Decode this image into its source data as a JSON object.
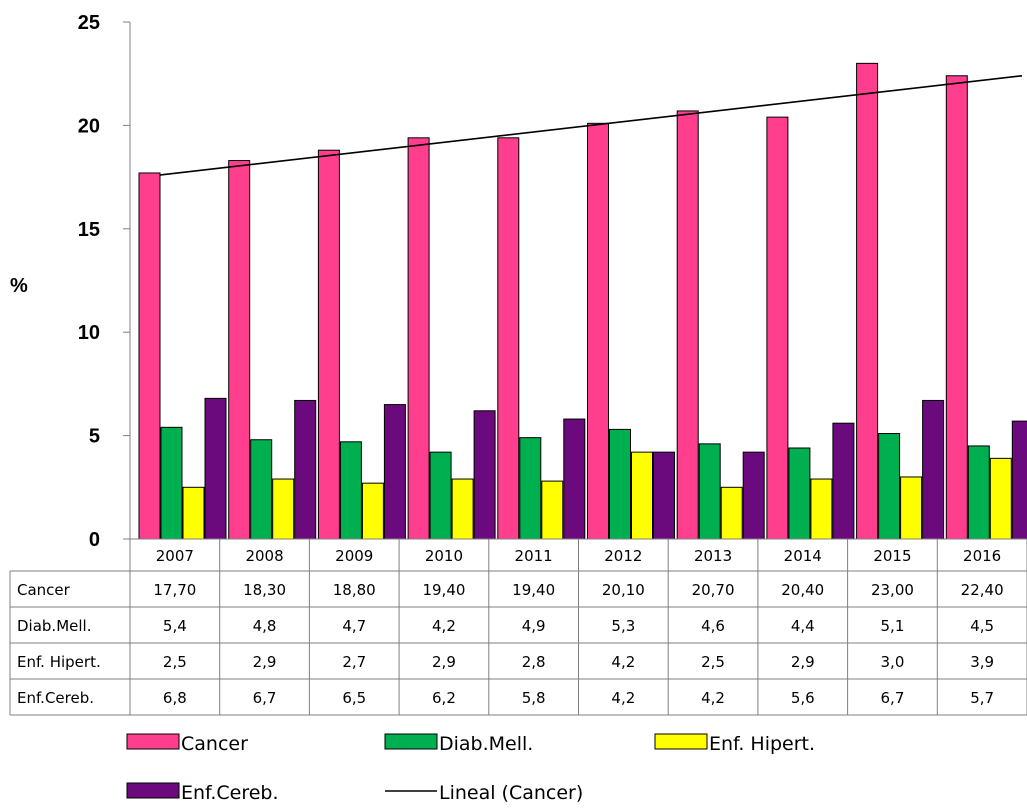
{
  "chart_data": {
    "type": "bar",
    "ylabel": "%",
    "ylim": [
      0,
      25
    ],
    "yticks": [
      "0",
      "5",
      "10",
      "15",
      "20",
      "25"
    ],
    "categories": [
      "2007",
      "2008",
      "2009",
      "2010",
      "2011",
      "2012",
      "2013",
      "2014",
      "2015",
      "2016"
    ],
    "series": [
      {
        "name": "Cancer",
        "color": "#FF3F8E",
        "values": [
          17.7,
          18.3,
          18.8,
          19.4,
          19.4,
          20.1,
          20.7,
          20.4,
          23.0,
          22.4
        ],
        "labels": [
          "17,70",
          "18,30",
          "18,80",
          "19,40",
          "19,40",
          "20,10",
          "20,70",
          "20,40",
          "23,00",
          "22,40"
        ]
      },
      {
        "name": "Diab.Mell.",
        "color": "#00B050",
        "values": [
          5.4,
          4.8,
          4.7,
          4.2,
          4.9,
          5.3,
          4.6,
          4.4,
          5.1,
          4.5
        ],
        "labels": [
          "5,4",
          "4,8",
          "4,7",
          "4,2",
          "4,9",
          "5,3",
          "4,6",
          "4,4",
          "5,1",
          "4,5"
        ]
      },
      {
        "name": "Enf. Hipert.",
        "color": "#FFFF00",
        "values": [
          2.5,
          2.9,
          2.7,
          2.9,
          2.8,
          4.2,
          2.5,
          2.9,
          3.0,
          3.9
        ],
        "labels": [
          "2,5",
          "2,9",
          "2,7",
          "2,9",
          "2,8",
          "4,2",
          "2,5",
          "2,9",
          "3,0",
          "3,9"
        ]
      },
      {
        "name": "Enf.Cereb.",
        "color": "#6A0A7C",
        "values": [
          6.8,
          6.7,
          6.5,
          6.2,
          5.8,
          4.2,
          4.2,
          5.6,
          6.7,
          5.7
        ],
        "labels": [
          "6,8",
          "6,7",
          "6,5",
          "6,2",
          "5,8",
          "4,2",
          "4,2",
          "5,6",
          "6,7",
          "5,7"
        ]
      }
    ],
    "trendline": {
      "name": "Lineal (Cancer)",
      "series": "Cancer",
      "type": "linear",
      "start": 17.6,
      "end": 22.4,
      "color": "#000000"
    },
    "grid": false,
    "legend": "bottom",
    "data_table": true
  }
}
